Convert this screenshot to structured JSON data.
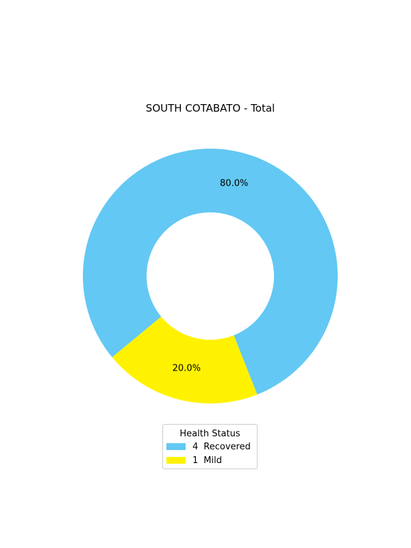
{
  "chart_data": {
    "type": "pie",
    "title": "SOUTH COTABATO - Total",
    "legend_title": "Health Status",
    "legend_position": "bottom-center",
    "donut": true,
    "slices": [
      {
        "label": "Recovered",
        "count": "4",
        "value": 4,
        "percent_label": "80.0%",
        "color": "#63c8f3"
      },
      {
        "label": "Mild",
        "count": "1",
        "value": 1,
        "percent_label": "20.0%",
        "color": "#fff200"
      }
    ]
  }
}
